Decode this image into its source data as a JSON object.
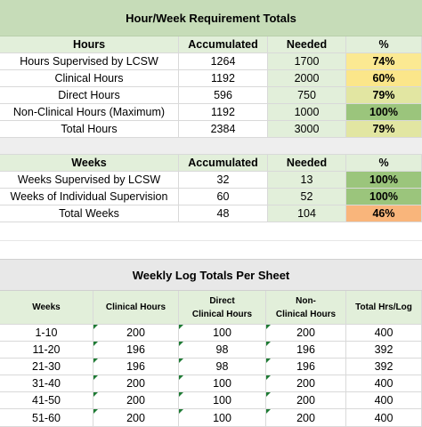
{
  "colors": {
    "title_bg": "#c6dcb8",
    "header_bg": "#e2efda",
    "needed_bg": "#e2efda",
    "gap_bg": "#eeeeee",
    "pct_74": "#fbe992",
    "pct_60": "#fbe68a",
    "pct_79": "#e2e6a2",
    "pct_100": "#9bc57c",
    "pct_46": "#f9b57b",
    "log_header_bg": "#e2efda",
    "comment_marker": "#1e7b34"
  },
  "hours_section": {
    "title": "Hour/Week Requirement Totals",
    "headers": {
      "label": "Hours",
      "accumulated": "Accumulated",
      "needed": "Needed",
      "pct": "%"
    },
    "rows": [
      {
        "label": "Hours Supervised by LCSW",
        "accumulated": "1264",
        "needed": "1700",
        "pct": "74%"
      },
      {
        "label": "Clinical Hours",
        "accumulated": "1192",
        "needed": "2000",
        "pct": "60%"
      },
      {
        "label": "Direct Hours",
        "accumulated": "596",
        "needed": "750",
        "pct": "79%"
      },
      {
        "label": "Non-Clinical Hours (Maximum)",
        "accumulated": "1192",
        "needed": "1000",
        "pct": "100%"
      },
      {
        "label": "Total Hours",
        "accumulated": "2384",
        "needed": "3000",
        "pct": "79%"
      }
    ]
  },
  "weeks_section": {
    "headers": {
      "label": "Weeks",
      "accumulated": "Accumulated",
      "needed": "Needed",
      "pct": "%"
    },
    "rows": [
      {
        "label": "Weeks Supervised by LCSW",
        "accumulated": "32",
        "needed": "13",
        "pct": "100%"
      },
      {
        "label": "Weeks of Individual Supervision",
        "accumulated": "60",
        "needed": "52",
        "pct": "100%"
      },
      {
        "label": "Total Weeks",
        "accumulated": "48",
        "needed": "104",
        "pct": "46%"
      }
    ]
  },
  "log_section": {
    "title": "Weekly Log Totals Per Sheet",
    "headers": {
      "weeks": "Weeks",
      "clinical": "Clinical Hours",
      "direct_1": "Direct",
      "direct_2": "Clinical Hours",
      "nonclinical_1": "Non-",
      "nonclinical_2": "Clinical Hours",
      "total": "Total Hrs/Log"
    },
    "rows": [
      {
        "weeks": "1-10",
        "clinical": "200",
        "direct": "100",
        "nonclinical": "200",
        "total": "400"
      },
      {
        "weeks": "11-20",
        "clinical": "196",
        "direct": "98",
        "nonclinical": "196",
        "total": "392"
      },
      {
        "weeks": "21-30",
        "clinical": "196",
        "direct": "98",
        "nonclinical": "196",
        "total": "392"
      },
      {
        "weeks": "31-40",
        "clinical": "200",
        "direct": "100",
        "nonclinical": "200",
        "total": "400"
      },
      {
        "weeks": "41-50",
        "clinical": "200",
        "direct": "100",
        "nonclinical": "200",
        "total": "400"
      },
      {
        "weeks": "51-60",
        "clinical": "200",
        "direct": "100",
        "nonclinical": "200",
        "total": "400"
      }
    ]
  }
}
